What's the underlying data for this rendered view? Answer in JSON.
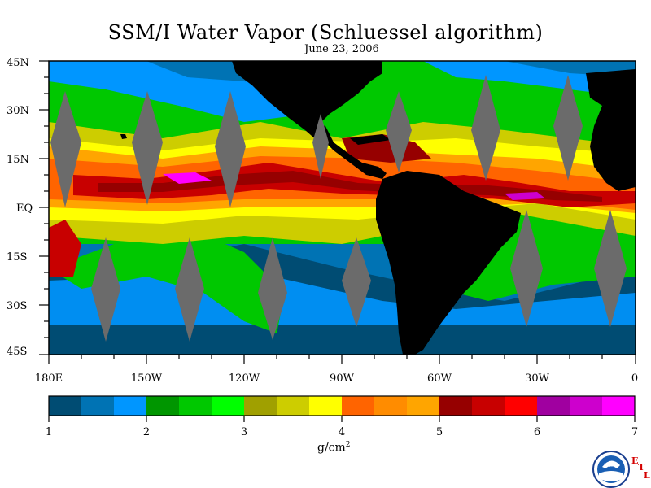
{
  "title": "SSM/I Water Vapor (Schluessel algorithm)",
  "date": "June 23, 2006",
  "lat_labels": [
    "45N",
    "30N",
    "15N",
    "EQ",
    "15S",
    "30S",
    "45S"
  ],
  "lon_labels": [
    "180E",
    "150W",
    "120W",
    "90W",
    "60W",
    "30W",
    "0"
  ],
  "colorbar": {
    "ticks": [
      "1",
      "2",
      "3",
      "4",
      "5",
      "6",
      "7"
    ],
    "unit": "g/cm",
    "unit_sup": "2",
    "colors": [
      "#004c73",
      "#0073b4",
      "#0096ff",
      "#009600",
      "#00c800",
      "#00ff00",
      "#a0a000",
      "#cdcd00",
      "#ffff00",
      "#ff6400",
      "#ff8c00",
      "#ffa500",
      "#960000",
      "#c80000",
      "#ff0000",
      "#a000a0",
      "#cd00cd",
      "#ff00ff"
    ]
  },
  "logo": {
    "name": "NOAA",
    "letters": [
      "E",
      "T",
      "L"
    ]
  }
}
